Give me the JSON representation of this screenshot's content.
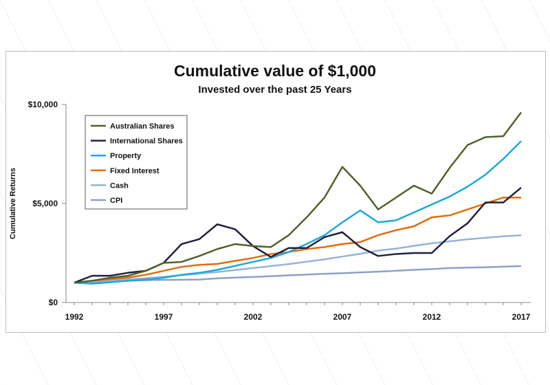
{
  "chart_data": {
    "type": "line",
    "title": "Cumulative value of $1,000",
    "subtitle": "Invested over the past 25 Years",
    "xlabel": "",
    "ylabel": "Cumulative Returns",
    "x": [
      1992,
      1993,
      1994,
      1995,
      1996,
      1997,
      1998,
      1999,
      2000,
      2001,
      2002,
      2003,
      2004,
      2005,
      2006,
      2007,
      2008,
      2009,
      2010,
      2011,
      2012,
      2013,
      2014,
      2015,
      2016,
      2017
    ],
    "xticks": [
      1992,
      1997,
      2002,
      2007,
      2012,
      2017
    ],
    "xtick_labels": [
      "1992",
      "1997",
      "2002",
      "2007",
      "2012",
      "2017"
    ],
    "ylim": [
      0,
      10000
    ],
    "yticks": [
      0,
      5000,
      10000
    ],
    "ytick_labels": [
      "$0",
      "$5,000",
      "$10,000"
    ],
    "grid": false,
    "legend_position": "top-left",
    "series": [
      {
        "name": "Australian Shares",
        "color": "#4f6228",
        "values": [
          1000,
          1100,
          1250,
          1350,
          1600,
          2000,
          2050,
          2350,
          2700,
          2950,
          2850,
          2800,
          3400,
          4300,
          5300,
          6850,
          5900,
          4700,
          5300,
          5900,
          5500,
          6800,
          7950,
          8350,
          8400,
          9600
        ]
      },
      {
        "name": "International Shares",
        "color": "#1f1f3f",
        "values": [
          1000,
          1350,
          1350,
          1500,
          1600,
          2000,
          2950,
          3200,
          3950,
          3700,
          2850,
          2300,
          2750,
          2750,
          3300,
          3550,
          2800,
          2350,
          2450,
          2500,
          2500,
          3350,
          4000,
          5050,
          5050,
          5800
        ]
      },
      {
        "name": "Property",
        "color": "#1aa9de",
        "values": [
          1000,
          950,
          1020,
          1100,
          1150,
          1250,
          1400,
          1500,
          1650,
          1850,
          2050,
          2250,
          2550,
          2950,
          3400,
          4050,
          4650,
          4050,
          4150,
          4550,
          4950,
          5350,
          5850,
          6450,
          7250,
          8150
        ]
      },
      {
        "name": "Fixed Interest",
        "color": "#e36c0a",
        "values": [
          1000,
          1100,
          1180,
          1260,
          1400,
          1600,
          1800,
          1900,
          1950,
          2100,
          2250,
          2450,
          2550,
          2700,
          2800,
          2950,
          3050,
          3400,
          3650,
          3850,
          4300,
          4400,
          4700,
          5000,
          5300,
          5300
        ]
      },
      {
        "name": "Cash",
        "color": "#95b3d7",
        "values": [
          1000,
          1060,
          1110,
          1170,
          1230,
          1300,
          1380,
          1460,
          1540,
          1640,
          1740,
          1840,
          1940,
          2060,
          2180,
          2320,
          2460,
          2620,
          2720,
          2860,
          2990,
          3090,
          3190,
          3270,
          3340,
          3400
        ]
      },
      {
        "name": "CPI",
        "color": "#8ea0c4",
        "values": [
          1000,
          1020,
          1060,
          1100,
          1130,
          1140,
          1150,
          1160,
          1220,
          1260,
          1290,
          1330,
          1370,
          1410,
          1450,
          1480,
          1520,
          1560,
          1600,
          1650,
          1690,
          1740,
          1760,
          1780,
          1810,
          1840
        ]
      }
    ]
  }
}
